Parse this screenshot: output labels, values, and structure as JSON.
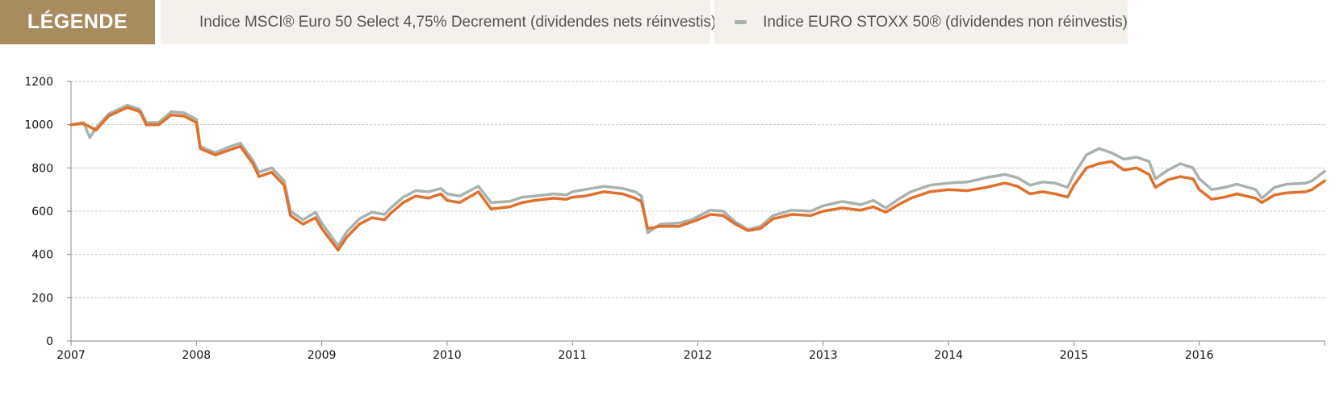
{
  "legend": {
    "title": "LÉGENDE",
    "items": [
      {
        "label": "Indice MSCI® Euro 50 Select 4,75% Decrement (dividendes nets réinvestis)",
        "color": "#e0702d"
      },
      {
        "label": "Indice EURO STOXX 50® (dividendes non réinvestis)",
        "color": "#a9b3ad"
      }
    ]
  },
  "colors": {
    "grid": "#c8c8c8",
    "axis": "#888888",
    "accent": "#a88c5e"
  },
  "chart_data": {
    "type": "line",
    "xlabel": "",
    "ylabel": "",
    "xlim": [
      2007,
      2017
    ],
    "ylim": [
      0,
      1200
    ],
    "x_ticks": [
      2007,
      2008,
      2009,
      2010,
      2011,
      2012,
      2013,
      2014,
      2015,
      2016
    ],
    "y_ticks": [
      0,
      200,
      400,
      600,
      800,
      1000,
      1200
    ],
    "grid": "horizontal",
    "legend_position": "top",
    "series": [
      {
        "name": "Indice MSCI® Euro 50 Select 4,75% Decrement (dividendes nets réinvestis)",
        "color": "#e0702d",
        "points": [
          [
            2007.0,
            1000
          ],
          [
            2007.1,
            1005
          ],
          [
            2007.2,
            975
          ],
          [
            2007.3,
            1040
          ],
          [
            2007.45,
            1080
          ],
          [
            2007.55,
            1060
          ],
          [
            2007.6,
            1000
          ],
          [
            2007.7,
            1000
          ],
          [
            2007.8,
            1045
          ],
          [
            2007.9,
            1040
          ],
          [
            2008.0,
            1010
          ],
          [
            2008.03,
            890
          ],
          [
            2008.15,
            860
          ],
          [
            2008.25,
            880
          ],
          [
            2008.35,
            900
          ],
          [
            2008.45,
            820
          ],
          [
            2008.5,
            760
          ],
          [
            2008.6,
            780
          ],
          [
            2008.7,
            720
          ],
          [
            2008.75,
            580
          ],
          [
            2008.85,
            540
          ],
          [
            2008.95,
            570
          ],
          [
            2009.0,
            520
          ],
          [
            2009.13,
            420
          ],
          [
            2009.2,
            480
          ],
          [
            2009.3,
            540
          ],
          [
            2009.4,
            570
          ],
          [
            2009.5,
            560
          ],
          [
            2009.55,
            590
          ],
          [
            2009.65,
            640
          ],
          [
            2009.75,
            670
          ],
          [
            2009.85,
            660
          ],
          [
            2009.95,
            680
          ],
          [
            2010.0,
            650
          ],
          [
            2010.1,
            640
          ],
          [
            2010.25,
            690
          ],
          [
            2010.35,
            610
          ],
          [
            2010.5,
            620
          ],
          [
            2010.6,
            640
          ],
          [
            2010.7,
            650
          ],
          [
            2010.85,
            660
          ],
          [
            2010.95,
            655
          ],
          [
            2011.0,
            665
          ],
          [
            2011.1,
            670
          ],
          [
            2011.25,
            690
          ],
          [
            2011.4,
            680
          ],
          [
            2011.5,
            660
          ],
          [
            2011.55,
            645
          ],
          [
            2011.6,
            520
          ],
          [
            2011.7,
            530
          ],
          [
            2011.85,
            530
          ],
          [
            2011.95,
            550
          ],
          [
            2012.0,
            560
          ],
          [
            2012.1,
            585
          ],
          [
            2012.2,
            580
          ],
          [
            2012.3,
            540
          ],
          [
            2012.4,
            510
          ],
          [
            2012.5,
            520
          ],
          [
            2012.6,
            565
          ],
          [
            2012.75,
            585
          ],
          [
            2012.9,
            580
          ],
          [
            2013.0,
            600
          ],
          [
            2013.15,
            615
          ],
          [
            2013.3,
            605
          ],
          [
            2013.4,
            620
          ],
          [
            2013.5,
            595
          ],
          [
            2013.6,
            630
          ],
          [
            2013.7,
            660
          ],
          [
            2013.85,
            690
          ],
          [
            2014.0,
            700
          ],
          [
            2014.15,
            695
          ],
          [
            2014.3,
            710
          ],
          [
            2014.45,
            730
          ],
          [
            2014.55,
            715
          ],
          [
            2014.65,
            680
          ],
          [
            2014.75,
            690
          ],
          [
            2014.85,
            680
          ],
          [
            2014.95,
            665
          ],
          [
            2015.0,
            720
          ],
          [
            2015.1,
            800
          ],
          [
            2015.2,
            820
          ],
          [
            2015.3,
            830
          ],
          [
            2015.4,
            790
          ],
          [
            2015.5,
            800
          ],
          [
            2015.6,
            770
          ],
          [
            2015.65,
            710
          ],
          [
            2015.75,
            745
          ],
          [
            2015.85,
            760
          ],
          [
            2015.95,
            750
          ],
          [
            2016.0,
            700
          ],
          [
            2016.1,
            655
          ],
          [
            2016.2,
            665
          ],
          [
            2016.3,
            680
          ],
          [
            2016.45,
            660
          ],
          [
            2016.5,
            640
          ],
          [
            2016.6,
            675
          ],
          [
            2016.7,
            685
          ],
          [
            2016.85,
            690
          ],
          [
            2016.9,
            700
          ],
          [
            2017.0,
            740
          ]
        ]
      },
      {
        "name": "Indice EURO STOXX 50® (dividendes non réinvestis)",
        "color": "#a9b3ad",
        "points": [
          [
            2007.0,
            1000
          ],
          [
            2007.1,
            1010
          ],
          [
            2007.15,
            940
          ],
          [
            2007.2,
            985
          ],
          [
            2007.3,
            1050
          ],
          [
            2007.45,
            1090
          ],
          [
            2007.55,
            1070
          ],
          [
            2007.6,
            1010
          ],
          [
            2007.7,
            1010
          ],
          [
            2007.8,
            1060
          ],
          [
            2007.9,
            1055
          ],
          [
            2008.0,
            1025
          ],
          [
            2008.03,
            900
          ],
          [
            2008.15,
            870
          ],
          [
            2008.25,
            895
          ],
          [
            2008.35,
            915
          ],
          [
            2008.45,
            835
          ],
          [
            2008.5,
            780
          ],
          [
            2008.6,
            800
          ],
          [
            2008.7,
            740
          ],
          [
            2008.75,
            600
          ],
          [
            2008.85,
            560
          ],
          [
            2008.95,
            595
          ],
          [
            2009.0,
            545
          ],
          [
            2009.13,
            440
          ],
          [
            2009.2,
            505
          ],
          [
            2009.3,
            565
          ],
          [
            2009.4,
            595
          ],
          [
            2009.5,
            585
          ],
          [
            2009.55,
            615
          ],
          [
            2009.65,
            665
          ],
          [
            2009.75,
            695
          ],
          [
            2009.85,
            690
          ],
          [
            2009.95,
            705
          ],
          [
            2010.0,
            680
          ],
          [
            2010.1,
            670
          ],
          [
            2010.25,
            715
          ],
          [
            2010.35,
            640
          ],
          [
            2010.5,
            645
          ],
          [
            2010.6,
            665
          ],
          [
            2010.7,
            670
          ],
          [
            2010.85,
            680
          ],
          [
            2010.95,
            675
          ],
          [
            2011.0,
            690
          ],
          [
            2011.1,
            700
          ],
          [
            2011.25,
            715
          ],
          [
            2011.4,
            705
          ],
          [
            2011.5,
            690
          ],
          [
            2011.55,
            670
          ],
          [
            2011.6,
            500
          ],
          [
            2011.7,
            540
          ],
          [
            2011.85,
            545
          ],
          [
            2011.95,
            560
          ],
          [
            2012.0,
            575
          ],
          [
            2012.1,
            605
          ],
          [
            2012.2,
            600
          ],
          [
            2012.3,
            550
          ],
          [
            2012.4,
            515
          ],
          [
            2012.5,
            530
          ],
          [
            2012.6,
            580
          ],
          [
            2012.75,
            605
          ],
          [
            2012.9,
            600
          ],
          [
            2013.0,
            625
          ],
          [
            2013.15,
            645
          ],
          [
            2013.3,
            630
          ],
          [
            2013.4,
            650
          ],
          [
            2013.5,
            615
          ],
          [
            2013.6,
            655
          ],
          [
            2013.7,
            690
          ],
          [
            2013.85,
            720
          ],
          [
            2014.0,
            730
          ],
          [
            2014.15,
            735
          ],
          [
            2014.3,
            755
          ],
          [
            2014.45,
            770
          ],
          [
            2014.55,
            755
          ],
          [
            2014.65,
            720
          ],
          [
            2014.75,
            735
          ],
          [
            2014.85,
            730
          ],
          [
            2014.95,
            710
          ],
          [
            2015.0,
            770
          ],
          [
            2015.1,
            860
          ],
          [
            2015.2,
            890
          ],
          [
            2015.3,
            870
          ],
          [
            2015.4,
            840
          ],
          [
            2015.5,
            850
          ],
          [
            2015.6,
            830
          ],
          [
            2015.65,
            750
          ],
          [
            2015.75,
            790
          ],
          [
            2015.85,
            820
          ],
          [
            2015.95,
            800
          ],
          [
            2016.0,
            750
          ],
          [
            2016.1,
            700
          ],
          [
            2016.2,
            710
          ],
          [
            2016.3,
            725
          ],
          [
            2016.45,
            700
          ],
          [
            2016.5,
            660
          ],
          [
            2016.6,
            710
          ],
          [
            2016.7,
            725
          ],
          [
            2016.85,
            730
          ],
          [
            2016.9,
            740
          ],
          [
            2017.0,
            785
          ]
        ]
      }
    ]
  }
}
